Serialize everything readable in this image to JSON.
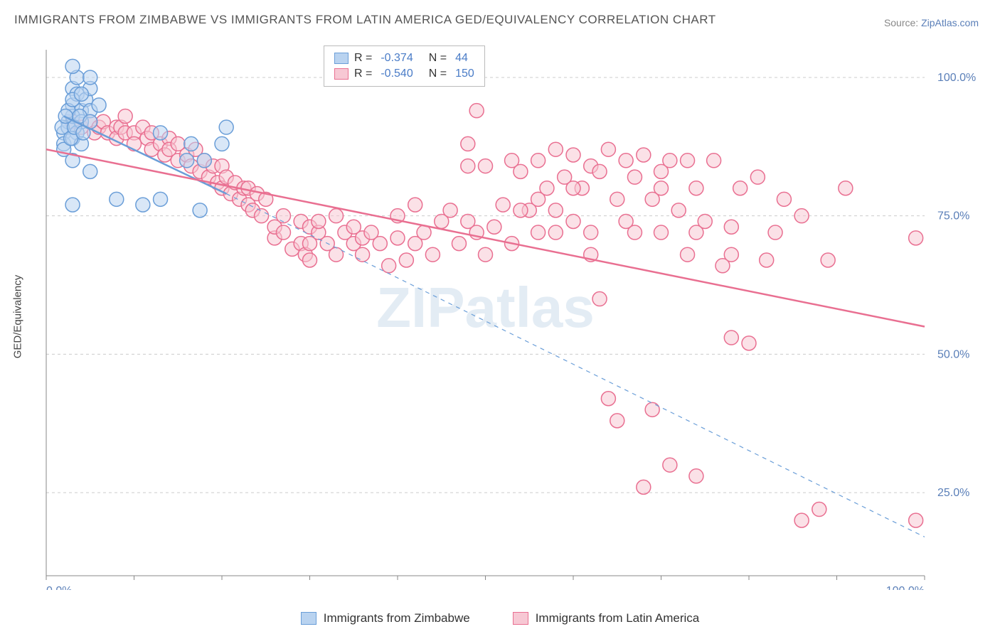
{
  "title": "IMMIGRANTS FROM ZIMBABWE VS IMMIGRANTS FROM LATIN AMERICA GED/EQUIVALENCY CORRELATION CHART",
  "source_label": "Source:",
  "source_name": "ZipAtlas.com",
  "ylabel": "GED/Equivalency",
  "watermark": "ZIPatlas",
  "chart": {
    "type": "scatter",
    "xlim": [
      0,
      100
    ],
    "ylim": [
      10,
      105
    ],
    "x_ticks": [
      0,
      100
    ],
    "x_tick_labels": [
      "0.0%",
      "100.0%"
    ],
    "y_ticks": [
      25,
      50,
      75,
      100
    ],
    "y_tick_labels": [
      "25.0%",
      "50.0%",
      "75.0%",
      "100.0%"
    ],
    "background_color": "#ffffff",
    "grid_color": "#cccccc",
    "axis_color": "#888888",
    "tick_color": "#5a7fb8",
    "marker_radius": 10,
    "marker_stroke_width": 1.5,
    "line_width": 2.5
  },
  "series": [
    {
      "name": "Immigrants from Zimbabwe",
      "short": "zimbabwe",
      "fill": "#b9d3f0",
      "stroke": "#6a9ed8",
      "R": "-0.374",
      "N": "44",
      "regression_solid": {
        "x1": 2,
        "y1": 93,
        "x2": 20.5,
        "y2": 79
      },
      "regression_dashed": {
        "x1": 20.5,
        "y1": 79,
        "x2": 100,
        "y2": 17
      },
      "points": [
        [
          2,
          90
        ],
        [
          2.5,
          92
        ],
        [
          3,
          95
        ],
        [
          3,
          98
        ],
        [
          3.5,
          100
        ],
        [
          3,
          102
        ],
        [
          3.5,
          97
        ],
        [
          4,
          94
        ],
        [
          2,
          88
        ],
        [
          2.5,
          91
        ],
        [
          3,
          93
        ],
        [
          3.5,
          90
        ],
        [
          4,
          92
        ],
        [
          4.5,
          96
        ],
        [
          5,
          98
        ],
        [
          5,
          100
        ],
        [
          2,
          87
        ],
        [
          3,
          89
        ],
        [
          4,
          88
        ],
        [
          2.5,
          94
        ],
        [
          3,
          96
        ],
        [
          4,
          97
        ],
        [
          5,
          94
        ],
        [
          6,
          95
        ],
        [
          1.8,
          91
        ],
        [
          2.2,
          93
        ],
        [
          2.8,
          89
        ],
        [
          3.2,
          91
        ],
        [
          3.8,
          93
        ],
        [
          4.2,
          90
        ],
        [
          5,
          92
        ],
        [
          3,
          77
        ],
        [
          3,
          85
        ],
        [
          5,
          83
        ],
        [
          8,
          78
        ],
        [
          11,
          77
        ],
        [
          13,
          78
        ],
        [
          13,
          90
        ],
        [
          16,
          85
        ],
        [
          16.5,
          88
        ],
        [
          17.5,
          76
        ],
        [
          18,
          85
        ],
        [
          20,
          88
        ],
        [
          20.5,
          91
        ]
      ]
    },
    {
      "name": "Immigrants from Latin America",
      "short": "latin-america",
      "fill": "#f7c8d4",
      "stroke": "#e96f91",
      "R": "-0.540",
      "N": "150",
      "regression_solid": {
        "x1": 0,
        "y1": 87,
        "x2": 100,
        "y2": 55
      },
      "regression_dashed": null,
      "points": [
        [
          3,
          92
        ],
        [
          4,
          91
        ],
        [
          5,
          92
        ],
        [
          5.5,
          90
        ],
        [
          6,
          91
        ],
        [
          6.5,
          92
        ],
        [
          7,
          90
        ],
        [
          8,
          91
        ],
        [
          8,
          89
        ],
        [
          8.5,
          91
        ],
        [
          9,
          93
        ],
        [
          9,
          90
        ],
        [
          10,
          90
        ],
        [
          10,
          88
        ],
        [
          11,
          91
        ],
        [
          11.5,
          89
        ],
        [
          12,
          90
        ],
        [
          12,
          87
        ],
        [
          13,
          88
        ],
        [
          13.5,
          86
        ],
        [
          14,
          89
        ],
        [
          14,
          87
        ],
        [
          15,
          88
        ],
        [
          15,
          85
        ],
        [
          16,
          86
        ],
        [
          16.5,
          84
        ],
        [
          17,
          87
        ],
        [
          17.5,
          83
        ],
        [
          18,
          85
        ],
        [
          18.5,
          82
        ],
        [
          19,
          84
        ],
        [
          19.5,
          81
        ],
        [
          20,
          84
        ],
        [
          20,
          80
        ],
        [
          20.5,
          82
        ],
        [
          21,
          79
        ],
        [
          21.5,
          81
        ],
        [
          22,
          78
        ],
        [
          22.5,
          80
        ],
        [
          23,
          77
        ],
        [
          23,
          80
        ],
        [
          23.5,
          76
        ],
        [
          24,
          79
        ],
        [
          24.5,
          75
        ],
        [
          25,
          78
        ],
        [
          26,
          71
        ],
        [
          26,
          73
        ],
        [
          27,
          72
        ],
        [
          27,
          75
        ],
        [
          28,
          69
        ],
        [
          29,
          70
        ],
        [
          29,
          74
        ],
        [
          29.5,
          68
        ],
        [
          30,
          73
        ],
        [
          30,
          70
        ],
        [
          30,
          67
        ],
        [
          31,
          72
        ],
        [
          31,
          74
        ],
        [
          32,
          70
        ],
        [
          33,
          75
        ],
        [
          33,
          68
        ],
        [
          34,
          72
        ],
        [
          35,
          70
        ],
        [
          35,
          73
        ],
        [
          36,
          68
        ],
        [
          36,
          71
        ],
        [
          37,
          72
        ],
        [
          38,
          70
        ],
        [
          39,
          66
        ],
        [
          40,
          75
        ],
        [
          40,
          71
        ],
        [
          41,
          67
        ],
        [
          42,
          70
        ],
        [
          42,
          77
        ],
        [
          43,
          72
        ],
        [
          44,
          68
        ],
        [
          45,
          74
        ],
        [
          46,
          76
        ],
        [
          47,
          70
        ],
        [
          48,
          84
        ],
        [
          48,
          74
        ],
        [
          49,
          94
        ],
        [
          49,
          72
        ],
        [
          50,
          84
        ],
        [
          50,
          68
        ],
        [
          51,
          73
        ],
        [
          52,
          77
        ],
        [
          53,
          85
        ],
        [
          53,
          70
        ],
        [
          54,
          83
        ],
        [
          55,
          76
        ],
        [
          56,
          85
        ],
        [
          56,
          72
        ],
        [
          57,
          80
        ],
        [
          58,
          87
        ],
        [
          58,
          76
        ],
        [
          59,
          82
        ],
        [
          60,
          74
        ],
        [
          60,
          86
        ],
        [
          61,
          80
        ],
        [
          62,
          84
        ],
        [
          62,
          72
        ],
        [
          63,
          60
        ],
        [
          63,
          83
        ],
        [
          64,
          87
        ],
        [
          64,
          42
        ],
        [
          65,
          78
        ],
        [
          65,
          38
        ],
        [
          66,
          85
        ],
        [
          67,
          72
        ],
        [
          67,
          82
        ],
        [
          68,
          26
        ],
        [
          68,
          86
        ],
        [
          69,
          78
        ],
        [
          69,
          40
        ],
        [
          70,
          83
        ],
        [
          70,
          72
        ],
        [
          71,
          30
        ],
        [
          71,
          85
        ],
        [
          72,
          76
        ],
        [
          73,
          85
        ],
        [
          73,
          68
        ],
        [
          74,
          80
        ],
        [
          74,
          28
        ],
        [
          75,
          74
        ],
        [
          76,
          85
        ],
        [
          77,
          66
        ],
        [
          78,
          53
        ],
        [
          78,
          73
        ],
        [
          79,
          80
        ],
        [
          80,
          52
        ],
        [
          81,
          82
        ],
        [
          82,
          67
        ],
        [
          83,
          72
        ],
        [
          84,
          78
        ],
        [
          86,
          20
        ],
        [
          86,
          75
        ],
        [
          88,
          22
        ],
        [
          89,
          67
        ],
        [
          91,
          80
        ],
        [
          99,
          71
        ],
        [
          99,
          20
        ],
        [
          48,
          88
        ],
        [
          54,
          76
        ],
        [
          58,
          72
        ],
        [
          62,
          68
        ],
        [
          66,
          74
        ],
        [
          70,
          80
        ],
        [
          74,
          72
        ],
        [
          78,
          68
        ],
        [
          56,
          78
        ],
        [
          60,
          80
        ]
      ]
    }
  ],
  "stats_legend": {
    "r_prefix": "R =",
    "n_prefix": "N ="
  },
  "bottom_legend": {
    "items": [
      {
        "label": "Immigrants from Zimbabwe",
        "fill": "#b9d3f0",
        "stroke": "#6a9ed8"
      },
      {
        "label": "Immigrants from Latin America",
        "fill": "#f7c8d4",
        "stroke": "#e96f91"
      }
    ]
  }
}
